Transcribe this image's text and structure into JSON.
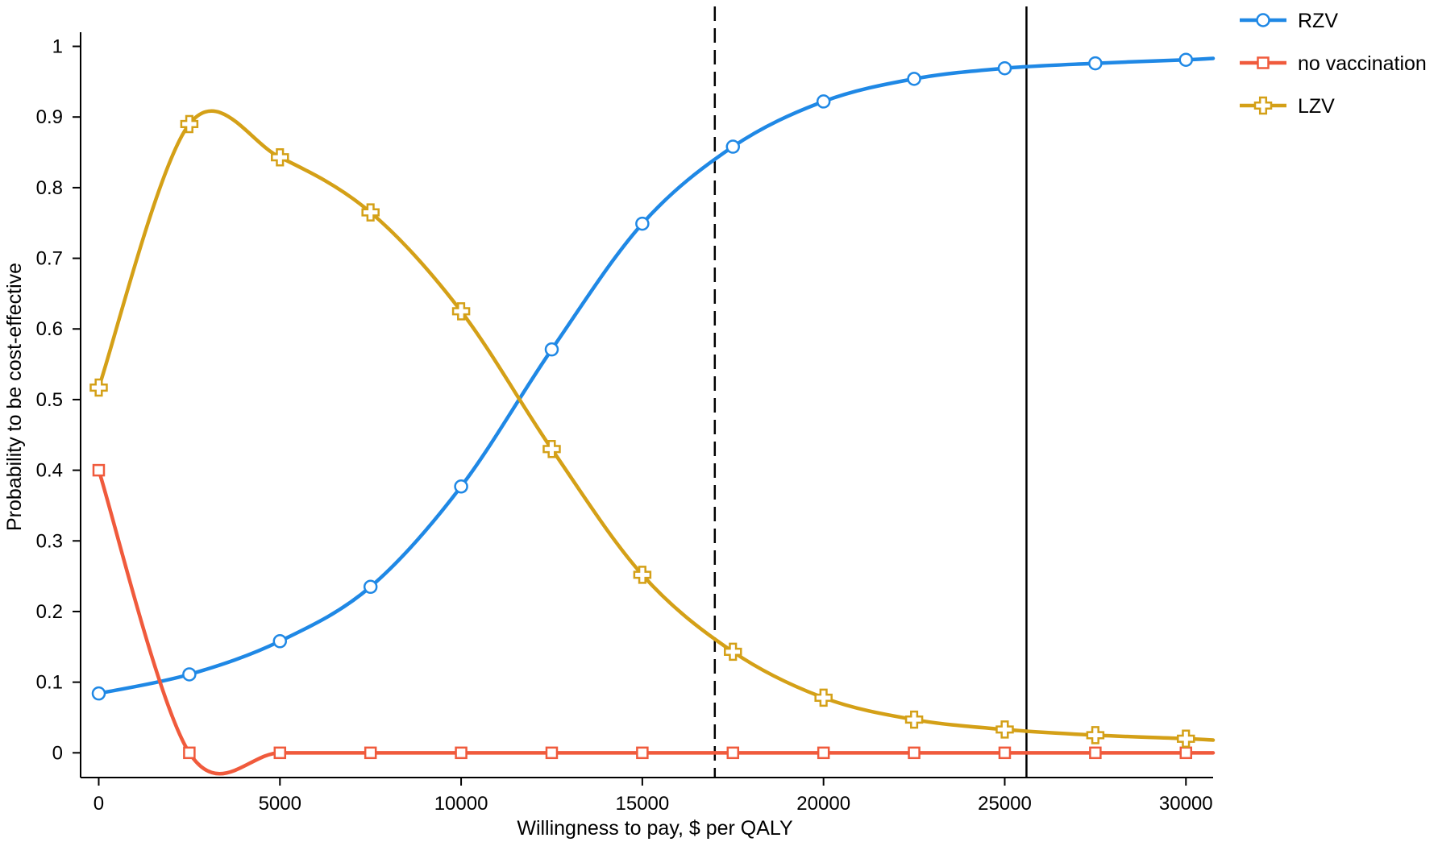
{
  "chart_data": {
    "type": "line",
    "title": "",
    "xlabel": "Willingness to pay, $ per QALY",
    "ylabel": "Probability to be cost-effective",
    "xlim": [
      -500,
      30750
    ],
    "ylim": [
      -0.035,
      1.02
    ],
    "x_ticks": [
      0,
      5000,
      10000,
      15000,
      20000,
      25000,
      30000
    ],
    "y_ticks": [
      0,
      0.1,
      0.2,
      0.3,
      0.4,
      0.5,
      0.6,
      0.7,
      0.8,
      0.9,
      1
    ],
    "x_tick_labels": [
      "0",
      "5000",
      "10000",
      "15000",
      "20000",
      "25000",
      "30000"
    ],
    "y_tick_labels": [
      "0",
      "0.1",
      "0.2",
      "0.3",
      "0.4",
      "0.5",
      "0.6",
      "0.7",
      "0.8",
      "0.9",
      "1"
    ],
    "grid": false,
    "legend_position": "top-right, outside plot",
    "x": [
      0,
      2500,
      5000,
      7500,
      10000,
      12500,
      15000,
      17500,
      20000,
      22500,
      25000,
      27500,
      30000
    ],
    "series": [
      {
        "name": "RZV",
        "color": "#1f88e5",
        "marker": "circle",
        "values": [
          0.084,
          0.111,
          0.158,
          0.235,
          0.377,
          0.571,
          0.749,
          0.858,
          0.922,
          0.954,
          0.969,
          0.976,
          0.981
        ],
        "curve_end": 0.983
      },
      {
        "name": "no vaccination",
        "color": "#f05a3c",
        "marker": "square",
        "values": [
          0.4,
          0,
          0,
          0,
          0,
          0,
          0,
          0,
          0,
          0,
          0,
          0,
          0
        ],
        "curve_end": 0
      },
      {
        "name": "LZV",
        "color": "#d4a017",
        "marker": "plus",
        "values": [
          0.517,
          0.89,
          0.843,
          0.765,
          0.625,
          0.43,
          0.252,
          0.143,
          0.078,
          0.047,
          0.033,
          0.025,
          0.02
        ],
        "curve_end": 0.018
      }
    ],
    "reference_lines": [
      {
        "x": 17000,
        "style": "dashed",
        "color": "#000000"
      },
      {
        "x": 25600,
        "style": "solid",
        "color": "#000000"
      }
    ]
  }
}
